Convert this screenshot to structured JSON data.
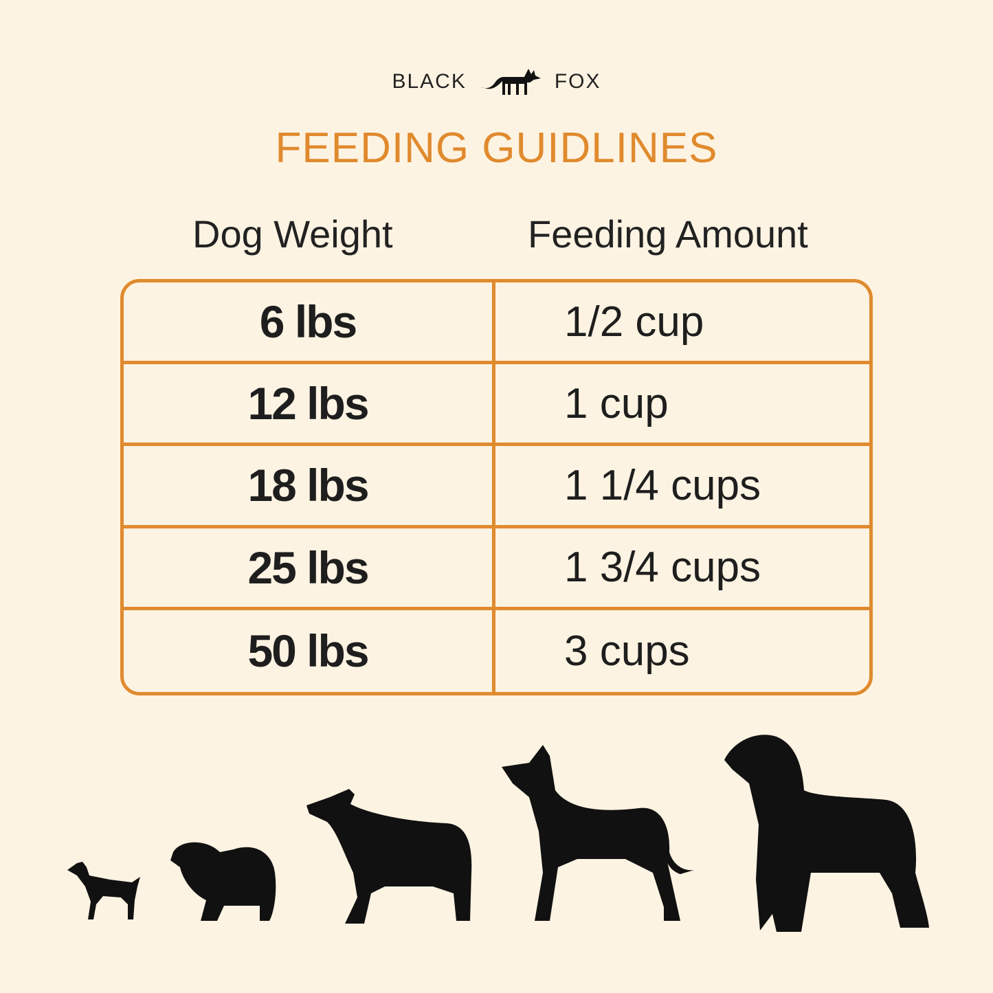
{
  "brand": {
    "left": "BLACK",
    "right": "FOX",
    "logo_icon": "fox-icon"
  },
  "title": "FEEDING GUIDLINES",
  "columns": [
    "Dog Weight",
    "Feeding Amount"
  ],
  "rows": [
    {
      "weight": "6 lbs",
      "amount": "1/2 cup"
    },
    {
      "weight": "12 lbs",
      "amount": "1 cup"
    },
    {
      "weight": "18 lbs",
      "amount": "1 1/4 cups"
    },
    {
      "weight": "25 lbs",
      "amount": "1 3/4 cups"
    },
    {
      "weight": "50 lbs",
      "amount": "3 cups"
    }
  ],
  "colors": {
    "accent": "#e08a2e",
    "background": "#fdf3e2",
    "text": "#1e1e1e"
  },
  "illustrations": [
    "dog-silhouette-tiny",
    "dog-silhouette-small",
    "dog-silhouette-medium",
    "dog-silhouette-large",
    "dog-silhouette-xlarge"
  ]
}
